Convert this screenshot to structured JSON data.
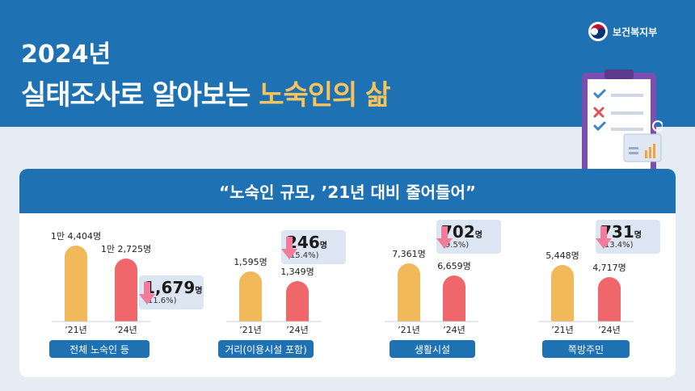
{
  "header": {
    "year": "2024년",
    "title_prefix": "실태조사로 알아보는 ",
    "title_highlight": "노숙인의 삶",
    "ministry": "보건복지부"
  },
  "card": {
    "headline": "“노숙인 규모, ’21년 대비 줄어들어”"
  },
  "colors": {
    "bar_2021": "#f2b95a",
    "bar_2024": "#f0676b",
    "accent": "#1e72b4",
    "callout_bg": "#dbe6f2",
    "arrow": "#f27b9a"
  },
  "chart_data": [
    {
      "type": "bar",
      "category": "전체 노숙인 등",
      "x": [
        "’21년",
        "’24년"
      ],
      "values": [
        14404,
        12725
      ],
      "value_labels": [
        "1만 4,404명",
        "1만 2,725명"
      ],
      "decrease": "1,679",
      "decrease_unit": "명",
      "decrease_pct": "(11.6%)"
    },
    {
      "type": "bar",
      "category": "거리(이용시설 포함)",
      "x": [
        "’21년",
        "’24년"
      ],
      "values": [
        1595,
        1349
      ],
      "value_labels": [
        "1,595명",
        "1,349명"
      ],
      "decrease": "246",
      "decrease_unit": "명",
      "decrease_pct": "(15.4%)"
    },
    {
      "type": "bar",
      "category": "생활시설",
      "x": [
        "’21년",
        "’24년"
      ],
      "values": [
        7361,
        6659
      ],
      "value_labels": [
        "7,361명",
        "6,659명"
      ],
      "decrease": "702",
      "decrease_unit": "명",
      "decrease_pct": "(9.5%)"
    },
    {
      "type": "bar",
      "category": "쪽방주민",
      "x": [
        "’21년",
        "’24년"
      ],
      "values": [
        5448,
        4717
      ],
      "value_labels": [
        "5,448명",
        "4,717명"
      ],
      "decrease": "731",
      "decrease_unit": "명",
      "decrease_pct": "(13.4%)"
    }
  ]
}
